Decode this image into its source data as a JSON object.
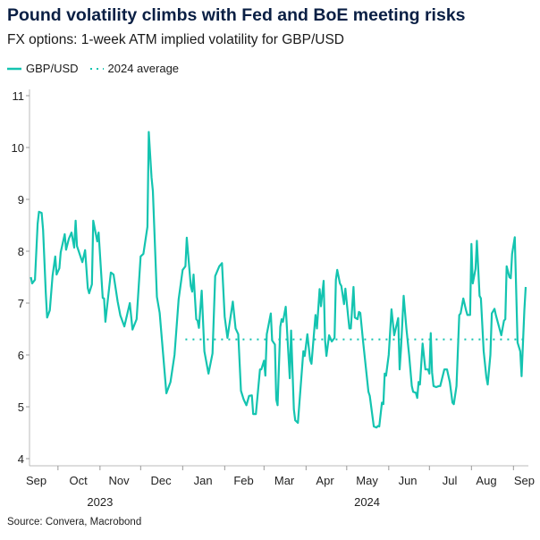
{
  "chart_data": {
    "type": "line",
    "title": "Pound volatility climbs with Fed and BoE meeting risks",
    "subtitle": "FX options: 1-week ATM implied volatility for GBP/USD",
    "source": "Source: Convera, Macrobond",
    "xlabel": "",
    "ylabel": "",
    "ylim": [
      4,
      11
    ],
    "yticks": [
      "4",
      "5",
      "6",
      "7",
      "8",
      "9",
      "10",
      "11"
    ],
    "xlim": [
      "2023-09-10",
      "2024-09-12"
    ],
    "month_labels": [
      {
        "label": "Sep",
        "date": "2023-09-15"
      },
      {
        "label": "Oct",
        "date": "2023-10-16"
      },
      {
        "label": "Nov",
        "date": "2023-11-15"
      },
      {
        "label": "Dec",
        "date": "2023-12-16"
      },
      {
        "label": "Jan",
        "date": "2024-01-16"
      },
      {
        "label": "Feb",
        "date": "2024-02-15"
      },
      {
        "label": "Mar",
        "date": "2024-03-16"
      },
      {
        "label": "Apr",
        "date": "2024-04-15"
      },
      {
        "label": "May",
        "date": "2024-05-16"
      },
      {
        "label": "Jun",
        "date": "2024-06-15"
      },
      {
        "label": "Jul",
        "date": "2024-07-16"
      },
      {
        "label": "Aug",
        "date": "2024-08-12"
      },
      {
        "label": "Sep",
        "date": "2024-09-09"
      }
    ],
    "year_labels": [
      {
        "label": "2023",
        "date": "2023-11-01"
      },
      {
        "label": "2024",
        "date": "2024-05-16"
      }
    ],
    "grid": false,
    "legend": "top-left",
    "colors": {
      "series": "#14c4b0",
      "average": "#14c4b0"
    },
    "series": [
      {
        "name": "GBP/USD",
        "style": "solid",
        "x": [
          "2023-09-11",
          "2023-09-12",
          "2023-09-14",
          "2023-09-16",
          "2023-09-17",
          "2023-09-19",
          "2023-09-20",
          "2023-09-22",
          "2023-09-23",
          "2023-09-25",
          "2023-09-27",
          "2023-09-29",
          "2023-09-30",
          "2023-10-02",
          "2023-10-03",
          "2023-10-06",
          "2023-10-07",
          "2023-10-09",
          "2023-10-11",
          "2023-10-13",
          "2023-10-14",
          "2023-10-15",
          "2023-10-19",
          "2023-10-21",
          "2023-10-23",
          "2023-10-24",
          "2023-10-26",
          "2023-10-27",
          "2023-10-30",
          "2023-10-31",
          "2023-11-03",
          "2023-11-04",
          "2023-11-05",
          "2023-11-09",
          "2023-11-11",
          "2023-11-14",
          "2023-11-16",
          "2023-11-19",
          "2023-11-23",
          "2023-11-25",
          "2023-11-28",
          "2023-12-01",
          "2023-12-03",
          "2023-12-06",
          "2023-12-07",
          "2023-12-09",
          "2023-12-10",
          "2023-12-13",
          "2023-12-15",
          "2023-12-20",
          "2023-12-23",
          "2023-12-26",
          "2023-12-29",
          "2024-01-01",
          "2024-01-03",
          "2024-01-04",
          "2024-01-07",
          "2024-01-08",
          "2024-01-09",
          "2024-01-11",
          "2024-01-12",
          "2024-01-13",
          "2024-01-15",
          "2024-01-17",
          "2024-01-20",
          "2024-01-23",
          "2024-01-25",
          "2024-01-28",
          "2024-01-30",
          "2024-02-01",
          "2024-02-03",
          "2024-02-07",
          "2024-02-09",
          "2024-02-11",
          "2024-02-13",
          "2024-02-15",
          "2024-02-17",
          "2024-02-19",
          "2024-02-21",
          "2024-02-22",
          "2024-02-24",
          "2024-02-27",
          "2024-02-28",
          "2024-03-01",
          "2024-03-02",
          "2024-03-03",
          "2024-03-06",
          "2024-03-07",
          "2024-03-09",
          "2024-03-10",
          "2024-03-11",
          "2024-03-13",
          "2024-03-14",
          "2024-03-15",
          "2024-03-17",
          "2024-03-20",
          "2024-03-21",
          "2024-03-23",
          "2024-03-24",
          "2024-03-26",
          "2024-03-30",
          "2024-03-31",
          "2024-04-02",
          "2024-04-04",
          "2024-04-05",
          "2024-04-08",
          "2024-04-09",
          "2024-04-11",
          "2024-04-12",
          "2024-04-14",
          "2024-04-15",
          "2024-04-16",
          "2024-04-18",
          "2024-04-20",
          "2024-04-22",
          "2024-04-23",
          "2024-04-24",
          "2024-04-26",
          "2024-04-27",
          "2024-04-29",
          "2024-04-30",
          "2024-05-02",
          "2024-05-03",
          "2024-05-04",
          "2024-05-06",
          "2024-05-07",
          "2024-05-09",
          "2024-05-10",
          "2024-05-11",
          "2024-05-13",
          "2024-05-17",
          "2024-05-18",
          "2024-05-21",
          "2024-05-23",
          "2024-05-24",
          "2024-05-25",
          "2024-05-27",
          "2024-05-28",
          "2024-05-29",
          "2024-05-30",
          "2024-06-01",
          "2024-06-03",
          "2024-06-05",
          "2024-06-08",
          "2024-06-09",
          "2024-06-10",
          "2024-06-12",
          "2024-06-14",
          "2024-06-16",
          "2024-06-18",
          "2024-06-19",
          "2024-06-21",
          "2024-06-22",
          "2024-06-23",
          "2024-06-24",
          "2024-06-26",
          "2024-06-28",
          "2024-06-30",
          "2024-07-01",
          "2024-07-02",
          "2024-07-03",
          "2024-07-04",
          "2024-07-06",
          "2024-07-08",
          "2024-07-09",
          "2024-07-12",
          "2024-07-14",
          "2024-07-16",
          "2024-07-18",
          "2024-07-19",
          "2024-07-21",
          "2024-07-23",
          "2024-07-24",
          "2024-07-26",
          "2024-07-28",
          "2024-07-29",
          "2024-07-31",
          "2024-08-01",
          "2024-08-02",
          "2024-08-04",
          "2024-08-05",
          "2024-08-07",
          "2024-08-08",
          "2024-08-10",
          "2024-08-12",
          "2024-08-13",
          "2024-08-15",
          "2024-08-16",
          "2024-08-18",
          "2024-08-19",
          "2024-08-23",
          "2024-08-25",
          "2024-08-26",
          "2024-08-27",
          "2024-08-29",
          "2024-08-30",
          "2024-08-31",
          "2024-09-02",
          "2024-09-04",
          "2024-09-06",
          "2024-09-07",
          "2024-09-09",
          "2024-09-10"
        ],
        "values": [
          7.5,
          7.38,
          7.45,
          8.53,
          8.76,
          8.74,
          8.41,
          7.2,
          6.72,
          6.86,
          7.53,
          7.9,
          7.55,
          7.67,
          7.98,
          8.33,
          8.03,
          8.24,
          8.36,
          8.07,
          8.59,
          8.1,
          7.79,
          8.02,
          7.29,
          7.19,
          7.36,
          8.59,
          8.19,
          8.36,
          7.1,
          7.09,
          6.64,
          7.59,
          7.55,
          7.03,
          6.76,
          6.55,
          7.0,
          6.49,
          6.69,
          7.9,
          7.95,
          8.47,
          10.3,
          9.42,
          9.16,
          7.12,
          6.81,
          5.26,
          5.48,
          6.0,
          7.07,
          7.64,
          7.71,
          8.26,
          7.33,
          7.22,
          7.55,
          6.69,
          6.66,
          6.52,
          7.24,
          6.07,
          5.64,
          6.03,
          7.52,
          7.71,
          7.77,
          6.74,
          6.33,
          7.03,
          6.51,
          6.4,
          5.31,
          5.14,
          5.03,
          5.21,
          5.22,
          4.86,
          4.86,
          5.72,
          5.72,
          5.89,
          5.6,
          6.4,
          6.8,
          6.28,
          6.2,
          5.14,
          5.03,
          6.54,
          6.69,
          6.64,
          6.93,
          5.55,
          6.47,
          4.95,
          4.74,
          4.69,
          6.07,
          5.98,
          6.4,
          5.9,
          5.83,
          6.77,
          6.51,
          7.27,
          6.94,
          7.43,
          6.28,
          5.98,
          6.38,
          6.26,
          6.33,
          7.45,
          7.64,
          7.38,
          7.33,
          6.98,
          7.28,
          6.76,
          6.51,
          6.51,
          7.31,
          6.72,
          6.69,
          6.83,
          6.81,
          6.28,
          5.29,
          5.21,
          4.62,
          4.6,
          4.63,
          4.62,
          5.08,
          5.05,
          5.64,
          5.6,
          6.0,
          6.88,
          6.38,
          6.71,
          5.72,
          6.11,
          7.14,
          6.52,
          6.0,
          5.4,
          5.29,
          5.27,
          5.17,
          5.48,
          5.43,
          6.22,
          5.72,
          5.72,
          5.64,
          6.42,
          5.66,
          5.4,
          5.38,
          5.4,
          5.4,
          5.72,
          5.72,
          5.48,
          5.08,
          5.05,
          5.4,
          6.77,
          6.8,
          7.09,
          6.86,
          6.77,
          6.77,
          8.14,
          7.38,
          7.66,
          8.2,
          7.14,
          7.09,
          6.07,
          5.57,
          5.43,
          6.0,
          6.8,
          6.89,
          6.77,
          6.38,
          6.66,
          6.69,
          7.71,
          7.5,
          7.48,
          7.95,
          8.27,
          6.24,
          6.07,
          5.59,
          6.86,
          7.31
        ]
      },
      {
        "name": "2024 average",
        "style": "dotted",
        "x": [
          "2024-01-03",
          "2024-09-10"
        ],
        "values": [
          6.3,
          6.3
        ]
      }
    ]
  }
}
